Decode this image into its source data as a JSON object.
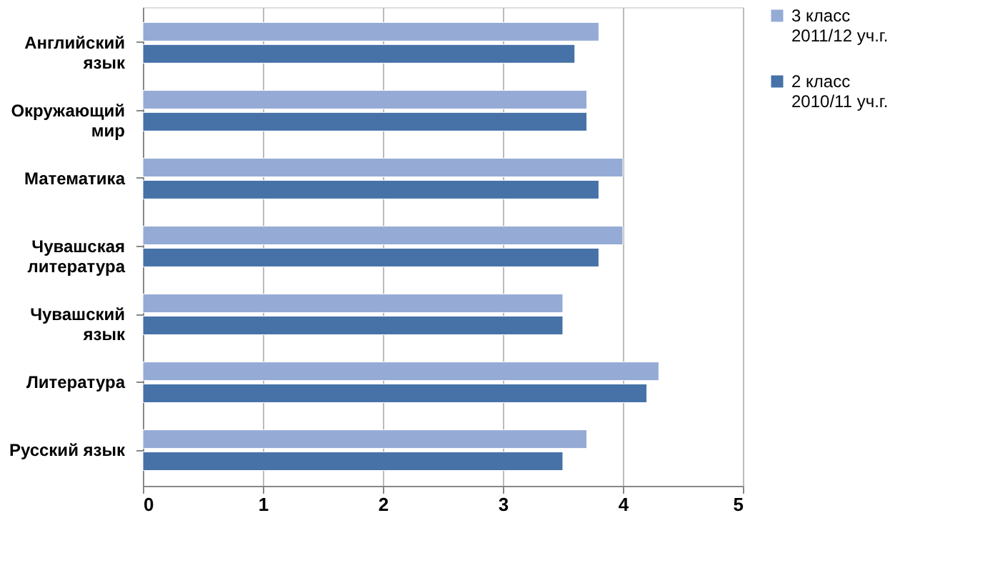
{
  "chart_data": {
    "type": "bar",
    "orientation": "horizontal",
    "categories": [
      "Английский язык",
      "Окружающий мир",
      "Математика",
      "Чувашская литература",
      "Чувашский язык",
      "Литература",
      "Русский язык"
    ],
    "series": [
      {
        "name": "3 класс 2011/12 уч.г.",
        "color": "#95abd6",
        "values": [
          3.8,
          3.7,
          4.0,
          4.0,
          3.5,
          4.3,
          3.7
        ]
      },
      {
        "name": "2 класс 2010/11 уч.г.",
        "color": "#4672a8",
        "values": [
          3.6,
          3.7,
          3.8,
          3.8,
          3.5,
          4.2,
          3.5
        ]
      }
    ],
    "xlim": [
      0,
      5
    ],
    "xticks": [
      0,
      1,
      2,
      3,
      4,
      5
    ],
    "grid": "x",
    "legend": "right"
  }
}
